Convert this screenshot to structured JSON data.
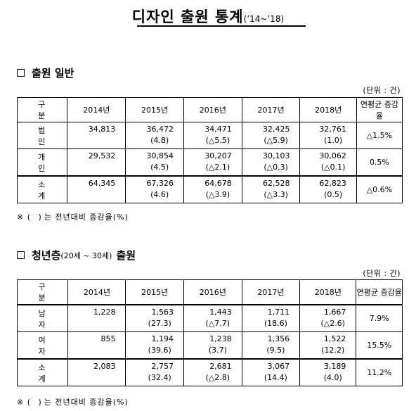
{
  "title": {
    "main": "디자인 출원 통계",
    "period": "(’14~’18)"
  },
  "unit_label": "(단위 : 건)",
  "note": {
    "mark": "※",
    "paren": "( )",
    "text": "는 전년대비 증감율(%)"
  },
  "columns": [
    "구 분",
    "2014년",
    "2015년",
    "2016년",
    "2017년",
    "2018년",
    "연평균 증감율"
  ],
  "section1": {
    "heading": "출원 일반",
    "rows": [
      {
        "label": "법 인",
        "values": [
          "34,813",
          "36,472",
          "34,471",
          "32,425",
          "32,761"
        ],
        "changes": [
          "",
          "(4.8)",
          "(△5.5)",
          "(△5.9)",
          "(1.0)"
        ],
        "avg": "△1.5%"
      },
      {
        "label": "개 인",
        "values": [
          "29,532",
          "30,854",
          "30,207",
          "30,103",
          "30,062"
        ],
        "changes": [
          "",
          "(4.5)",
          "(△2.1)",
          "(△0.3)",
          "(△0.1)"
        ],
        "avg": "0.5%"
      },
      {
        "label": "소 계",
        "values": [
          "64,345",
          "67,326",
          "64,678",
          "62,528",
          "62,823"
        ],
        "changes": [
          "",
          "(4.6)",
          "(△3.9)",
          "(△3.3)",
          "(0.5)"
        ],
        "avg": "△0.6%"
      }
    ]
  },
  "section2": {
    "heading": "청년층",
    "heading_sub": "(20세 ~ 30세)",
    "heading_tail": "출원",
    "rows": [
      {
        "label": "남 자",
        "values": [
          "1,228",
          "1,563",
          "1,443",
          "1,711",
          "1,667"
        ],
        "changes": [
          "",
          "(27.3)",
          "(△7.7)",
          "(18.6)",
          "(△2.6)"
        ],
        "avg": "7.9%"
      },
      {
        "label": "여 자",
        "values": [
          "855",
          "1,194",
          "1,238",
          "1,356",
          "1,522"
        ],
        "changes": [
          "",
          "(39.6)",
          "(3.7)",
          "(9.5)",
          "(12.2)"
        ],
        "avg": "15.5%"
      },
      {
        "label": "소 계",
        "values": [
          "2,083",
          "2,757",
          "2,681",
          "3,067",
          "3,189"
        ],
        "changes": [
          "",
          "(32.4)",
          "(△2.8)",
          "(14.4)",
          "(4.0)"
        ],
        "avg": "11.2%"
      }
    ]
  }
}
